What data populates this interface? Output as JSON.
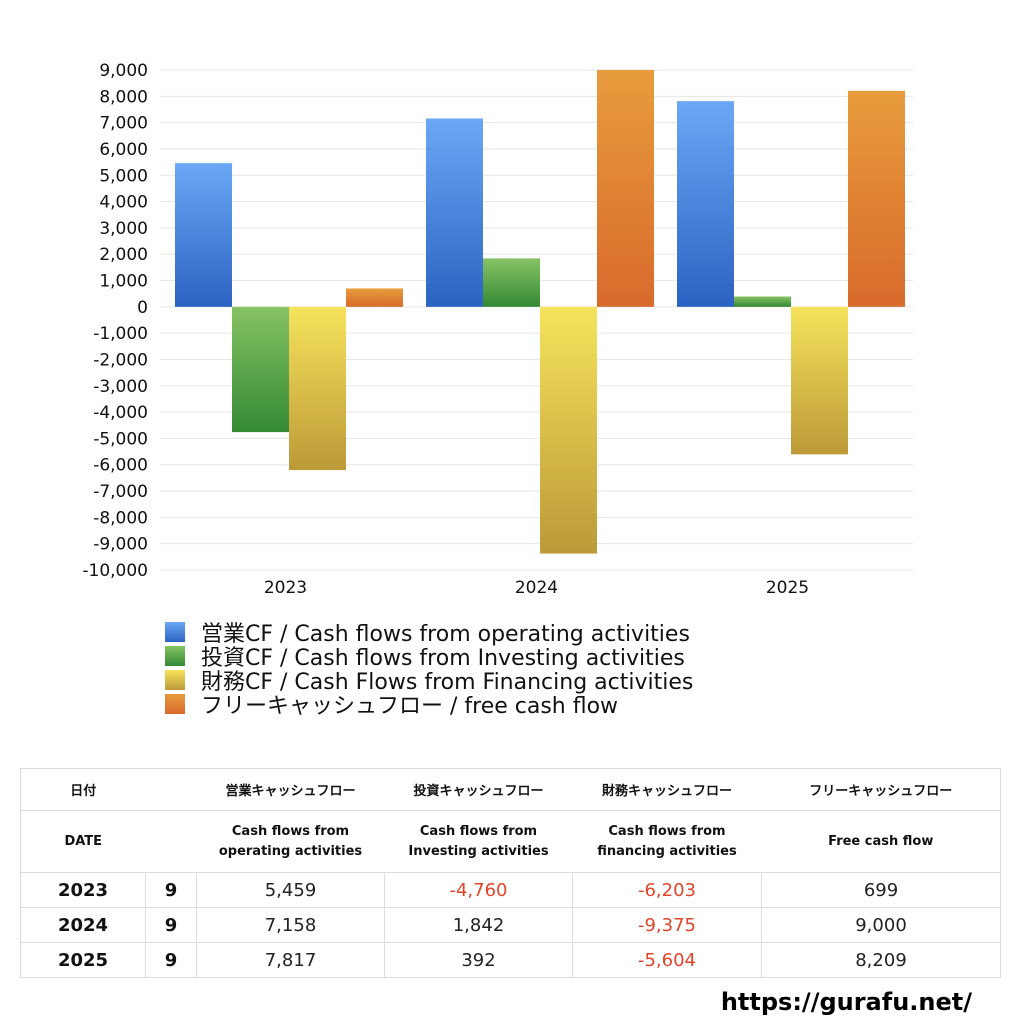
{
  "chart_data": {
    "type": "bar",
    "categories": [
      "2023",
      "2024",
      "2025"
    ],
    "series": [
      {
        "name": "営業CF / Cash flows from operating activities",
        "values": [
          5459,
          7158,
          7817
        ],
        "color": "#3f7fdb"
      },
      {
        "name": "投資CF / Cash flows from Investing activities",
        "values": [
          -4760,
          1842,
          392
        ],
        "color": "#4f9e3e"
      },
      {
        "name": "財務CF / Cash Flows from Financing activities",
        "values": [
          -6203,
          -9375,
          -5604
        ],
        "color": "#e5c848"
      },
      {
        "name": "フリーキャッシュフロー / free cash flow",
        "values": [
          699,
          9000,
          8209
        ],
        "color": "#e07a2e"
      }
    ],
    "ylim": [
      -10000,
      9000
    ],
    "yticks": [
      "9,000",
      "8,000",
      "7,000",
      "6,000",
      "5,000",
      "4,000",
      "3,000",
      "2,000",
      "1,000",
      "0",
      "-1,000",
      "-2,000",
      "-3,000",
      "-4,000",
      "-5,000",
      "-6,000",
      "-7,000",
      "-8,000",
      "-9,000",
      "-10,000"
    ],
    "grid": true,
    "legend_position": "bottom"
  },
  "table": {
    "headers_jp": [
      "日付",
      "",
      "営業キャッシュフロー",
      "投資キャッシュフロー",
      "財務キャッシュフロー",
      "フリーキャッシュフロー"
    ],
    "headers_en": [
      "DATE",
      "",
      "Cash flows from\noperating activities",
      "Cash flows from\nInvesting activities",
      "Cash flows from\nfinancing activities",
      "Free cash flow"
    ],
    "rows": [
      {
        "year": "2023",
        "month": "9",
        "operating": "5,459",
        "investing": "-4,760",
        "financing": "-6,203",
        "free": "699"
      },
      {
        "year": "2024",
        "month": "9",
        "operating": "7,158",
        "investing": "1,842",
        "financing": "-9,375",
        "free": "9,000"
      },
      {
        "year": "2025",
        "month": "9",
        "operating": "7,817",
        "investing": "392",
        "financing": "-5,604",
        "free": "8,209"
      }
    ]
  },
  "footer": {
    "url": "https://gurafu.net/"
  }
}
